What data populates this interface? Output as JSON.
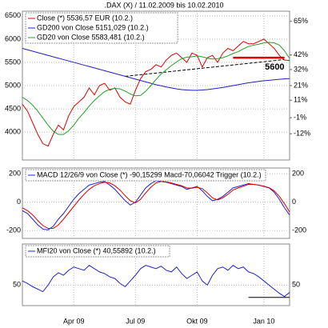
{
  "chart_data": [
    {
      "type": "line",
      "title": ".DAX (X) / 11.02.2009 bis 10.02.2010",
      "x": [
        0,
        1,
        2,
        3,
        4,
        5,
        6,
        7,
        8,
        9,
        10,
        11,
        12,
        13,
        14,
        15,
        16,
        17,
        18,
        19,
        20,
        21,
        22,
        23,
        24,
        25,
        26,
        27,
        28,
        29,
        30,
        31,
        32,
        33,
        34,
        35,
        36,
        37,
        38,
        39,
        40,
        41,
        42,
        43,
        44,
        45,
        46,
        47,
        48,
        49,
        50,
        51,
        52
      ],
      "xlim": [
        0,
        52
      ],
      "ylim": [
        3400,
        6600
      ],
      "yticks": [
        4000,
        4500,
        5000,
        5500,
        6000,
        6500
      ],
      "y2lim": [
        -30,
        72
      ],
      "y2ticks": [
        {
          "value": 65,
          "label": "65%"
        },
        {
          "value": 42,
          "label": "42%"
        },
        {
          "value": 32,
          "label": "32%"
        },
        {
          "value": 21,
          "label": "21%"
        },
        {
          "value": 11,
          "label": "11%"
        },
        {
          "value": -1,
          "label": "-1%"
        },
        {
          "value": -12,
          "label": "-12%"
        }
      ],
      "series": [
        {
          "name": "Close (*) 5536,57 EUR (10.2.)",
          "color": "#e00000",
          "values": [
            4600,
            4450,
            4200,
            3950,
            3750,
            3700,
            3950,
            4150,
            4050,
            4350,
            4550,
            4650,
            4750,
            4950,
            4800,
            5000,
            5050,
            4900,
            4950,
            4750,
            4650,
            4600,
            4900,
            5150,
            5300,
            5350,
            5450,
            5400,
            5550,
            5650,
            5700,
            5600,
            5500,
            5700,
            5650,
            5400,
            5600,
            5650,
            5500,
            5700,
            5800,
            5750,
            5850,
            5950,
            5900,
            5900,
            5950,
            6000,
            5900,
            5800,
            5650,
            5550,
            5537
          ]
        },
        {
          "name": "GD200 von Close 5151,029 (10.2.)",
          "color": "#2020c0",
          "values": [
            5800,
            5770,
            5740,
            5710,
            5680,
            5650,
            5620,
            5590,
            5560,
            5530,
            5500,
            5470,
            5440,
            5410,
            5380,
            5350,
            5320,
            5290,
            5260,
            5230,
            5200,
            5170,
            5140,
            5110,
            5080,
            5050,
            5020,
            4995,
            4970,
            4950,
            4930,
            4915,
            4905,
            4900,
            4900,
            4905,
            4915,
            4930,
            4945,
            4960,
            4980,
            5000,
            5020,
            5040,
            5060,
            5075,
            5090,
            5105,
            5115,
            5125,
            5135,
            5145,
            5151
          ]
        },
        {
          "name": "GD20 von Close 5583,481 (10.2.)",
          "color": "#20a020",
          "values": [
            4750,
            4680,
            4580,
            4450,
            4300,
            4150,
            4020,
            3950,
            3950,
            4030,
            4150,
            4300,
            4420,
            4560,
            4680,
            4780,
            4870,
            4920,
            4940,
            4930,
            4880,
            4820,
            4780,
            4790,
            4880,
            5000,
            5130,
            5250,
            5340,
            5430,
            5510,
            5580,
            5610,
            5620,
            5640,
            5620,
            5590,
            5570,
            5580,
            5600,
            5640,
            5690,
            5730,
            5790,
            5840,
            5870,
            5890,
            5920,
            5930,
            5920,
            5870,
            5750,
            5583
          ]
        }
      ],
      "hline": {
        "value": 5600,
        "label": "5600",
        "color": "#e00000",
        "x": [
          41,
          51
        ]
      },
      "trendline": {
        "x": [
          20,
          51
        ],
        "values": [
          5200,
          5560
        ],
        "color": "#000000"
      }
    },
    {
      "type": "line",
      "x": [
        0,
        1,
        2,
        3,
        4,
        5,
        6,
        7,
        8,
        9,
        10,
        11,
        12,
        13,
        14,
        15,
        16,
        17,
        18,
        19,
        20,
        21,
        22,
        23,
        24,
        25,
        26,
        27,
        28,
        29,
        30,
        31,
        32,
        33,
        34,
        35,
        36,
        37,
        38,
        39,
        40,
        41,
        42,
        43,
        44,
        45,
        46,
        47,
        48,
        49,
        50,
        51,
        52
      ],
      "xlim": [
        0,
        52
      ],
      "ylim": [
        -255,
        240
      ],
      "yticks": [
        200,
        0,
        -200
      ],
      "legend": "MACD 12/26/9 von Close (*) -90,15299 Macd-70,06042 Trigger (10.2.)",
      "series": [
        {
          "color": "#2020d0",
          "values": [
            -60,
            -80,
            -120,
            -160,
            -190,
            -195,
            -170,
            -120,
            -80,
            -30,
            20,
            60,
            90,
            120,
            130,
            140,
            145,
            120,
            90,
            50,
            10,
            -20,
            0,
            50,
            100,
            130,
            150,
            145,
            140,
            130,
            120,
            110,
            90,
            100,
            110,
            80,
            40,
            10,
            20,
            40,
            70,
            100,
            110,
            120,
            130,
            125,
            120,
            110,
            100,
            70,
            20,
            -40,
            -90
          ]
        },
        {
          "color": "#e00000",
          "values": [
            -40,
            -60,
            -90,
            -130,
            -165,
            -185,
            -185,
            -160,
            -120,
            -75,
            -30,
            15,
            55,
            90,
            115,
            130,
            140,
            135,
            115,
            85,
            45,
            10,
            -5,
            20,
            65,
            105,
            135,
            145,
            142,
            135,
            125,
            115,
            100,
            98,
            105,
            95,
            65,
            30,
            15,
            30,
            55,
            85,
            100,
            112,
            125,
            125,
            120,
            112,
            102,
            80,
            40,
            -10,
            -70
          ]
        }
      ]
    },
    {
      "type": "line",
      "x": [
        0,
        1,
        2,
        3,
        4,
        5,
        6,
        7,
        8,
        9,
        10,
        11,
        12,
        13,
        14,
        15,
        16,
        17,
        18,
        19,
        20,
        21,
        22,
        23,
        24,
        25,
        26,
        27,
        28,
        29,
        30,
        31,
        32,
        33,
        34,
        35,
        36,
        37,
        38,
        39,
        40,
        41,
        42,
        43,
        44,
        45,
        46,
        47,
        48,
        49,
        50,
        51,
        52
      ],
      "xlim": [
        0,
        52
      ],
      "xticks": [
        {
          "value": 10,
          "label": "Apr 09"
        },
        {
          "value": 22,
          "label": "Jul 09"
        },
        {
          "value": 34,
          "label": "Okt 09"
        },
        {
          "value": 47,
          "label": "Jan 10"
        }
      ],
      "ylim": [
        25,
        100
      ],
      "yticks": [
        50
      ],
      "series": [
        {
          "name": "MFI20 von Close (*) 40,55892 (10.2.)",
          "color": "#2020d0",
          "values": [
            55,
            52,
            48,
            45,
            42,
            50,
            60,
            65,
            62,
            68,
            72,
            70,
            68,
            74,
            70,
            66,
            64,
            60,
            58,
            52,
            48,
            55,
            62,
            70,
            74,
            72,
            70,
            73,
            68,
            66,
            72,
            64,
            58,
            62,
            66,
            55,
            50,
            62,
            70,
            72,
            68,
            74,
            70,
            72,
            66,
            64,
            60,
            55,
            50,
            45,
            40,
            36,
            41
          ]
        }
      ],
      "hline": {
        "value": 35,
        "color": "#000000",
        "x": [
          44,
          52
        ]
      }
    }
  ]
}
